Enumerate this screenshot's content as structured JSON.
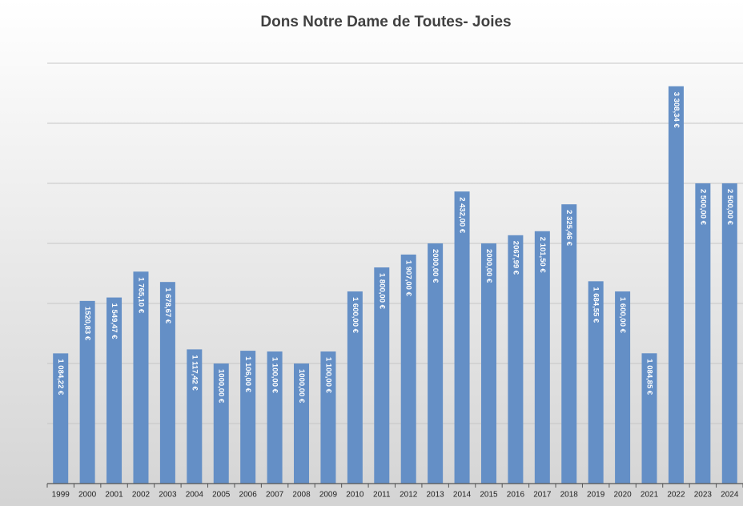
{
  "chart_data": {
    "type": "bar",
    "title": "Dons Notre Dame de Toutes- Joies",
    "categories": [
      "1999",
      "2000",
      "2001",
      "2002",
      "2003",
      "2004",
      "2005",
      "2006",
      "2007",
      "2008",
      "2009",
      "2010",
      "2011",
      "2012",
      "2013",
      "2014",
      "2015",
      "2016",
      "2017",
      "2018",
      "2019",
      "2020",
      "2021",
      "2022",
      "2023",
      "2024"
    ],
    "values": [
      1084.22,
      1520.83,
      1549.47,
      1765.1,
      1678.67,
      1117.42,
      1000,
      1106,
      1100,
      1000,
      1100,
      1600,
      1800,
      1907,
      2000,
      2432,
      2000,
      2067.99,
      2101.5,
      2325.46,
      1684.55,
      1600,
      1084.85,
      3308.34,
      2500,
      2500
    ],
    "value_labels": [
      "1 084,22 €",
      "1520,83 €",
      "1 549,47 €",
      "1 765,10 €",
      "1 678,67 €",
      "1 117,42 €",
      "1000,00 €",
      "1 106,00 €",
      "1 100,00 €",
      "1000,00 €",
      "1 100,00 €",
      "1 600,00 €",
      "1 800,00 €",
      "1 907,00 €",
      "2000,00 €",
      "2 432,00 €",
      "2000,00 €",
      "2067,99 €",
      "2 101,50 €",
      "2 325,46 €",
      "1 684,55 €",
      "1 600,00 €",
      "1 084,85 €",
      "3 308,34 €",
      "2 500,00 €",
      "2 500,00 €"
    ],
    "color": "#648fc6",
    "ylim": [
      0,
      3500
    ],
    "yticks": [
      0,
      500,
      1000,
      1500,
      2000,
      2500,
      3000,
      3500
    ],
    "grid": true
  }
}
